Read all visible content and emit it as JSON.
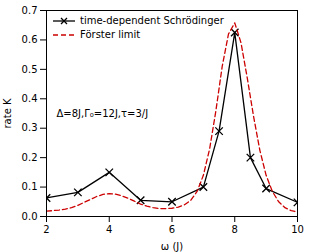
{
  "chart_data": {
    "type": "line",
    "xlabel": "ω (J)",
    "ylabel": "rate K",
    "xlim": [
      2,
      10
    ],
    "ylim": [
      0,
      0.7
    ],
    "xticks": [
      2,
      4,
      6,
      8,
      10
    ],
    "yticks": [
      {
        "value": 0.0,
        "label": "0.0"
      },
      0.1,
      0.2,
      0.3,
      0.4,
      0.5,
      0.6,
      0.7
    ],
    "series": [
      {
        "name": "time-dependent Schrödinger",
        "color": "#000000",
        "marker": "x",
        "line_style": "solid",
        "x": [
          2,
          3,
          4,
          5,
          6,
          7,
          7.5,
          8,
          8.5,
          9,
          10
        ],
        "values": [
          0.063,
          0.082,
          0.15,
          0.055,
          0.05,
          0.1,
          0.29,
          0.625,
          0.2,
          0.095,
          0.048
        ]
      },
      {
        "name": "Förster limit",
        "color": "#cc0000",
        "line_style": "dashed",
        "x": [
          2.0,
          2.2,
          2.4,
          2.6,
          2.8,
          3.0,
          3.2,
          3.4,
          3.6,
          3.8,
          4.0,
          4.2,
          4.4,
          4.6,
          4.8,
          5.0,
          5.2,
          5.4,
          5.6,
          5.8,
          6.0,
          6.2,
          6.4,
          6.6,
          6.8,
          7.0,
          7.2,
          7.4,
          7.6,
          7.8,
          8.0,
          8.2,
          8.4,
          8.6,
          8.8,
          9.0,
          9.2,
          9.4,
          9.6,
          9.8,
          10.0
        ],
        "values": [
          0.018,
          0.02,
          0.022,
          0.025,
          0.03,
          0.038,
          0.048,
          0.058,
          0.068,
          0.075,
          0.078,
          0.076,
          0.07,
          0.062,
          0.052,
          0.042,
          0.035,
          0.03,
          0.027,
          0.027,
          0.028,
          0.032,
          0.04,
          0.055,
          0.085,
          0.14,
          0.23,
          0.36,
          0.51,
          0.62,
          0.658,
          0.59,
          0.47,
          0.34,
          0.225,
          0.14,
          0.085,
          0.05,
          0.03,
          0.02,
          0.015
        ]
      }
    ],
    "annotation": "Δ=8J,Γ₀=12J,τ=3/J",
    "grid": false,
    "legend": "upper left"
  }
}
